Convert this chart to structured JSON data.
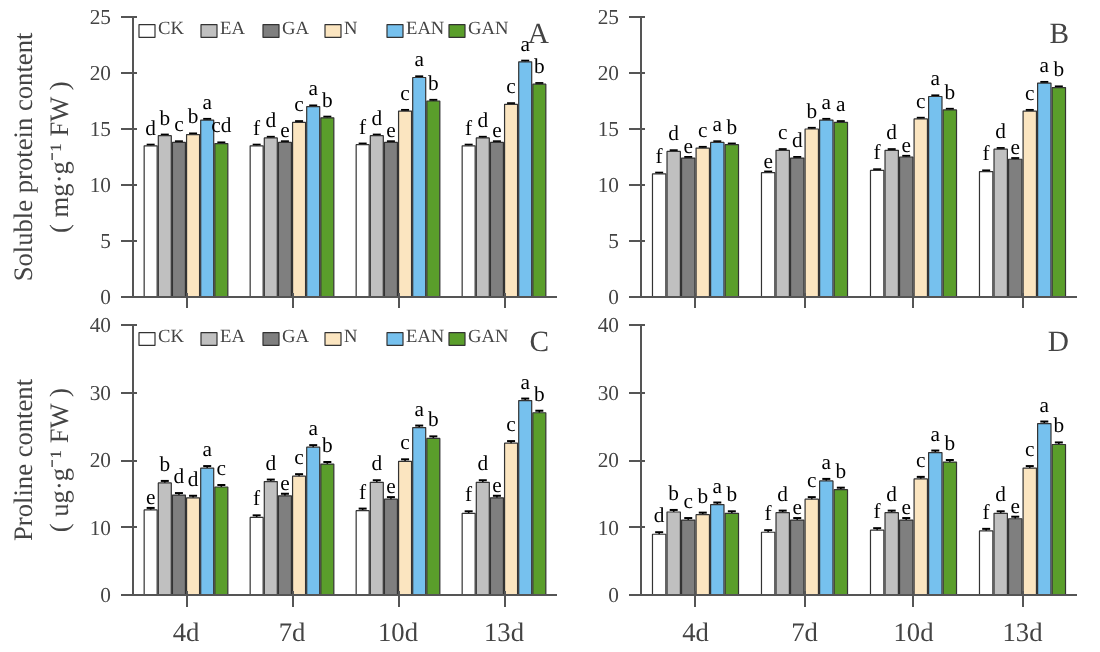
{
  "chart_data": [
    {
      "type": "bar",
      "ylabel": "Soluble protein content\n( mg·g⁻¹ FW )",
      "annotations": [
        "A"
      ],
      "categories": [
        null,
        null,
        null,
        null
      ],
      "ylim": [
        0,
        25
      ],
      "yticks": [
        0,
        5,
        10,
        15,
        20,
        25
      ],
      "legend": "top",
      "grid": false,
      "series": [
        {
          "name": "CK",
          "color": "#ffffff",
          "values": [
            13.5,
            13.5,
            13.6,
            13.5
          ],
          "errors": [
            0.1,
            0.1,
            0.1,
            0.1
          ],
          "value_labels": [
            "d",
            "f",
            "f",
            "f"
          ]
        },
        {
          "name": "EA",
          "color": "#c0c0c0",
          "values": [
            14.4,
            14.2,
            14.4,
            14.2
          ],
          "errors": [
            0.1,
            0.1,
            0.1,
            0.1
          ],
          "value_labels": [
            "b",
            "d",
            "d",
            "d"
          ]
        },
        {
          "name": "GA",
          "color": "#7f7f7f",
          "values": [
            13.8,
            13.8,
            13.8,
            13.8
          ],
          "errors": [
            0.1,
            0.1,
            0.1,
            0.1
          ],
          "value_labels": [
            "c",
            "e",
            "e",
            "e"
          ]
        },
        {
          "name": "N",
          "color": "#fbe5c0",
          "values": [
            14.5,
            15.6,
            16.6,
            17.2
          ],
          "errors": [
            0.1,
            0.1,
            0.1,
            0.1
          ],
          "value_labels": [
            "b",
            "c",
            "c",
            "c"
          ]
        },
        {
          "name": "EAN",
          "color": "#76c1ee",
          "values": [
            15.8,
            17.0,
            19.6,
            21.0
          ],
          "errors": [
            0.1,
            0.1,
            0.1,
            0.1
          ],
          "value_labels": [
            "a",
            "a",
            "a",
            "a"
          ]
        },
        {
          "name": "GAN",
          "color": "#5a9e2b",
          "values": [
            13.7,
            16.0,
            17.5,
            19.0
          ],
          "errors": [
            0.1,
            0.1,
            0.1,
            0.1
          ],
          "value_labels": [
            "cd",
            "b",
            "b",
            "b"
          ]
        }
      ]
    },
    {
      "type": "bar",
      "annotations": [
        "B"
      ],
      "categories": [
        null,
        null,
        null,
        null
      ],
      "ylim": [
        0,
        25
      ],
      "yticks": [
        0,
        5,
        10,
        15,
        20,
        25
      ],
      "grid": false,
      "series": [
        {
          "color": "#ffffff",
          "values": [
            11.0,
            11.1,
            11.3,
            11.2
          ],
          "errors": [
            0.1,
            0.1,
            0.1,
            0.1
          ],
          "value_labels": [
            "f",
            "e",
            "f",
            "f"
          ]
        },
        {
          "color": "#c0c0c0",
          "values": [
            13.0,
            13.1,
            13.1,
            13.2
          ],
          "errors": [
            0.1,
            0.1,
            0.1,
            0.1
          ],
          "value_labels": [
            "d",
            "c",
            "d",
            "d"
          ]
        },
        {
          "color": "#7f7f7f",
          "values": [
            12.4,
            12.4,
            12.5,
            12.3
          ],
          "errors": [
            0.1,
            0.1,
            0.1,
            0.1
          ],
          "value_labels": [
            "e",
            "d",
            "e",
            "e"
          ]
        },
        {
          "color": "#fbe5c0",
          "values": [
            13.3,
            15.0,
            15.9,
            16.6
          ],
          "errors": [
            0.1,
            0.1,
            0.1,
            0.1
          ],
          "value_labels": [
            "c",
            "b",
            "c",
            "c"
          ]
        },
        {
          "color": "#76c1ee",
          "values": [
            13.8,
            15.8,
            17.9,
            19.1
          ],
          "errors": [
            0.1,
            0.1,
            0.1,
            0.1
          ],
          "value_labels": [
            "a",
            "a",
            "a",
            "a"
          ]
        },
        {
          "color": "#5a9e2b",
          "values": [
            13.6,
            15.6,
            16.7,
            18.7
          ],
          "errors": [
            0.1,
            0.1,
            0.1,
            0.1
          ],
          "value_labels": [
            "b",
            "a",
            "b",
            "b"
          ]
        }
      ]
    },
    {
      "type": "bar",
      "ylabel": "Proline content\n( ug·g⁻¹ FW )",
      "annotations": [
        "C"
      ],
      "categories": [
        "4d",
        "7d",
        "10d",
        "13d"
      ],
      "ylim": [
        0,
        40
      ],
      "yticks": [
        0,
        10,
        20,
        30,
        40
      ],
      "legend": "top",
      "grid": false,
      "series": [
        {
          "name": "CK",
          "color": "#ffffff",
          "values": [
            12.6,
            11.5,
            12.5,
            12.1
          ],
          "errors": [
            0.3,
            0.3,
            0.3,
            0.3
          ],
          "value_labels": [
            "e",
            "f",
            "f",
            "f"
          ]
        },
        {
          "name": "EA",
          "color": "#c0c0c0",
          "values": [
            16.6,
            16.8,
            16.7,
            16.7
          ],
          "errors": [
            0.3,
            0.3,
            0.3,
            0.3
          ],
          "value_labels": [
            "b",
            "d",
            "d",
            "d"
          ]
        },
        {
          "name": "GA",
          "color": "#7f7f7f",
          "values": [
            14.8,
            14.7,
            14.2,
            14.4
          ],
          "errors": [
            0.3,
            0.3,
            0.3,
            0.3
          ],
          "value_labels": [
            "d",
            "e",
            "e",
            "e"
          ]
        },
        {
          "name": "N",
          "color": "#fbe5c0",
          "values": [
            14.4,
            17.6,
            19.8,
            22.5
          ],
          "errors": [
            0.3,
            0.3,
            0.3,
            0.3
          ],
          "value_labels": [
            "d",
            "c",
            "c",
            "c"
          ]
        },
        {
          "name": "EAN",
          "color": "#76c1ee",
          "values": [
            18.8,
            21.9,
            24.8,
            28.8
          ],
          "errors": [
            0.3,
            0.3,
            0.3,
            0.3
          ],
          "value_labels": [
            "a",
            "a",
            "a",
            "a"
          ]
        },
        {
          "name": "GAN",
          "color": "#5a9e2b",
          "values": [
            16.0,
            19.4,
            23.2,
            27.0
          ],
          "errors": [
            0.3,
            0.3,
            0.3,
            0.3
          ],
          "value_labels": [
            "c",
            "b",
            "b",
            "b"
          ]
        }
      ]
    },
    {
      "type": "bar",
      "annotations": [
        "D"
      ],
      "categories": [
        "4d",
        "7d",
        "10d",
        "13d"
      ],
      "ylim": [
        0,
        40
      ],
      "yticks": [
        0,
        10,
        20,
        30,
        40
      ],
      "grid": false,
      "series": [
        {
          "color": "#ffffff",
          "values": [
            9.0,
            9.3,
            9.6,
            9.5
          ],
          "errors": [
            0.3,
            0.3,
            0.3,
            0.3
          ],
          "value_labels": [
            "d",
            "f",
            "f",
            "f"
          ]
        },
        {
          "color": "#c0c0c0",
          "values": [
            12.3,
            12.2,
            12.2,
            12.1
          ],
          "errors": [
            0.3,
            0.3,
            0.3,
            0.3
          ],
          "value_labels": [
            "b",
            "d",
            "d",
            "d"
          ]
        },
        {
          "color": "#7f7f7f",
          "values": [
            11.1,
            11.1,
            11.1,
            11.3
          ],
          "errors": [
            0.3,
            0.3,
            0.3,
            0.3
          ],
          "value_labels": [
            "c",
            "e",
            "e",
            "e"
          ]
        },
        {
          "color": "#fbe5c0",
          "values": [
            11.9,
            14.2,
            17.2,
            18.8
          ],
          "errors": [
            0.3,
            0.3,
            0.3,
            0.3
          ],
          "value_labels": [
            "b",
            "c",
            "c",
            "c"
          ]
        },
        {
          "color": "#76c1ee",
          "values": [
            13.4,
            16.9,
            21.1,
            25.4
          ],
          "errors": [
            0.3,
            0.3,
            0.3,
            0.3
          ],
          "value_labels": [
            "a",
            "a",
            "a",
            "a"
          ]
        },
        {
          "color": "#5a9e2b",
          "values": [
            12.1,
            15.6,
            19.7,
            22.3
          ],
          "errors": [
            0.3,
            0.3,
            0.3,
            0.3
          ],
          "value_labels": [
            "b",
            "b",
            "b",
            "b"
          ]
        }
      ]
    }
  ]
}
